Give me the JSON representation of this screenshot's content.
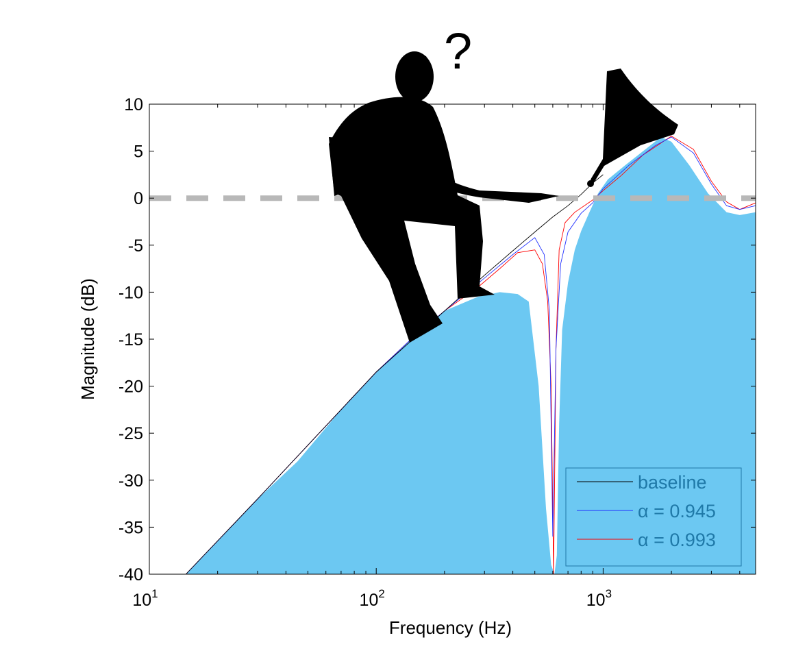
{
  "chart_data": {
    "type": "area",
    "xlabel": "Frequency (Hz)",
    "ylabel": "Magnitude (dB)",
    "xscale": "log",
    "xlim": [
      10,
      4700
    ],
    "ylim": [
      -40,
      10
    ],
    "x_tick_labels": [
      {
        "value": 10,
        "base": "10",
        "exp": "1"
      },
      {
        "value": 100,
        "base": "10",
        "exp": "2"
      },
      {
        "value": 1000,
        "base": "10",
        "exp": "3"
      }
    ],
    "y_ticks": [
      10,
      5,
      0,
      -5,
      -10,
      -15,
      -20,
      -25,
      -30,
      -35,
      -40
    ],
    "reference_line": {
      "y": 0,
      "style": "dashed",
      "color": "#b8b8b8"
    },
    "fill_color": "#6cc8f2",
    "annotation": "?",
    "legend": {
      "position": "bottom-right",
      "text_color": "#1f79a8",
      "entries": [
        {
          "label": "baseline",
          "color": "#000000"
        },
        {
          "label": "α = 0.945",
          "color": "#2030ff"
        },
        {
          "label": "α = 0.993",
          "color": "#ff0000"
        }
      ]
    },
    "series": [
      {
        "name": "filled",
        "color": "#6cc8f2",
        "x": [
          14.5,
          20,
          30,
          45,
          70,
          100,
          150,
          200,
          280,
          350,
          420,
          470,
          520,
          560,
          590,
          610,
          625,
          640,
          660,
          700,
          750,
          800,
          870,
          950,
          1050,
          1250,
          1500,
          1800,
          2000,
          2400,
          2900,
          3500,
          4000,
          4700
        ],
        "y": [
          -40,
          -36.5,
          -32,
          -28,
          -22.5,
          -18.5,
          -14.5,
          -12,
          -10.5,
          -10,
          -10.2,
          -11,
          -20,
          -33,
          -39,
          -40,
          -38,
          -24,
          -14,
          -9,
          -5.5,
          -3.5,
          -1.5,
          0.5,
          2,
          3.5,
          5,
          6.5,
          6,
          3.5,
          0.5,
          -1.5,
          -1.8,
          -1.5
        ]
      },
      {
        "name": "α = 0.993",
        "color": "#ff0000",
        "x": [
          14.5,
          30,
          70,
          100,
          150,
          200,
          280,
          350,
          420,
          500,
          540,
          570,
          590,
          605,
          620,
          640,
          680,
          750,
          900,
          1000,
          1200,
          1500,
          2000,
          2500,
          3000,
          3500,
          4000,
          4700
        ],
        "y": [
          -40,
          -32,
          -22.5,
          -18.5,
          -14.5,
          -12,
          -9.5,
          -7.5,
          -5.8,
          -5.5,
          -7,
          -11,
          -20,
          -40,
          -16,
          -5.5,
          -2.6,
          -1.5,
          -0.2,
          0.8,
          2.4,
          4.6,
          6.6,
          5.2,
          1.8,
          -0.4,
          -1.2,
          -0.5
        ]
      },
      {
        "name": "α = 0.945",
        "color": "#2030ff",
        "x": [
          14.5,
          30,
          70,
          100,
          150,
          200,
          300,
          400,
          500,
          550,
          580,
          600,
          620,
          650,
          700,
          800,
          900,
          1000,
          1300,
          1700,
          2000,
          2500,
          3000,
          3500,
          4000,
          4700
        ],
        "y": [
          -40,
          -32,
          -22.5,
          -18.5,
          -14.5,
          -12,
          -8.5,
          -6,
          -4.2,
          -6,
          -12,
          -36,
          -16,
          -7,
          -3.6,
          -1.6,
          -0.5,
          1,
          3.5,
          5.6,
          6.5,
          4.8,
          1.5,
          -0.8,
          -1.2,
          -0.8
        ]
      },
      {
        "name": "baseline",
        "color": "#000000",
        "x": [
          14.5,
          30,
          70,
          100,
          200,
          300,
          400,
          500,
          600,
          700,
          800,
          900,
          1000
        ],
        "y": [
          -40,
          -32,
          -22.5,
          -18.5,
          -12,
          -8.2,
          -5.6,
          -3.6,
          -2,
          -0.8,
          0.4,
          1.6,
          2.5
        ]
      }
    ]
  }
}
